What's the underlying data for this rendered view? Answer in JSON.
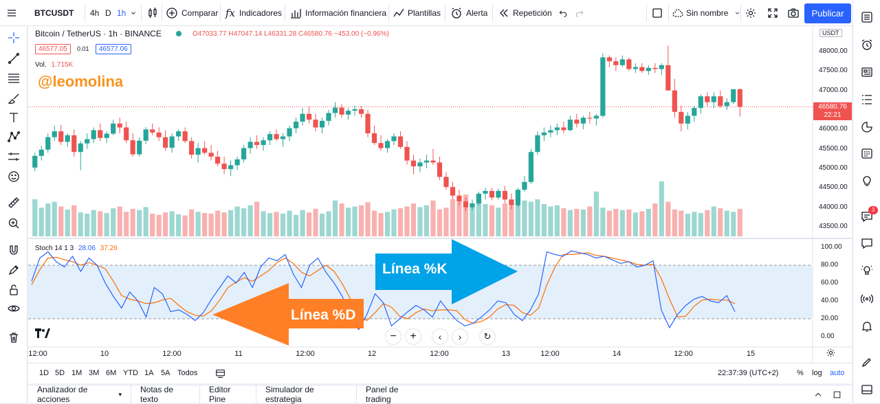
{
  "topbar": {
    "symbol": "BTCUSDT",
    "intervals": [
      "4h",
      "D",
      "1h"
    ],
    "compare": "Comparar",
    "indicators": "Indicadores",
    "financial_info": "Información financiera",
    "templates": "Plantillas",
    "alert": "Alerta",
    "replay": "Repetición",
    "layout_name": "Sin nombre",
    "publish": "Publicar"
  },
  "legend": {
    "title": "Bitcoin / TetherUS · 1h · BINANCE",
    "ohlc": "O47033.77 H47047.14 L46331.28 C46580.76 −453.00 (−0.96%)",
    "bid": "46577.05",
    "spread": "0.01",
    "ask": "46577.06",
    "vol_label": "Vol.",
    "vol_value": "1.715K",
    "watermark": "@leomolina",
    "stoch_label": "Stoch 14 1 3",
    "stoch_k": "28.06",
    "stoch_d": "37.26"
  },
  "annotations": {
    "k_label": "Línea %K",
    "d_label": "Línea %D"
  },
  "price_axis": {
    "currency": "USDT",
    "labels": [
      "48000.00",
      "47500.00",
      "47000.00",
      "46500.00",
      "46000.00",
      "45500.00",
      "45000.00",
      "44500.00",
      "44000.00",
      "43500.00"
    ],
    "last_price": "46580.76",
    "countdown": "22:21",
    "stoch_labels": [
      "100.00",
      "80.00",
      "60.00",
      "40.00",
      "20.00",
      "0.00"
    ]
  },
  "time_axis": [
    "12:00",
    "10",
    "12:00",
    "11",
    "12:00",
    "12",
    "12:00",
    "13",
    "12:00",
    "14",
    "12:00",
    "15"
  ],
  "bottombar": {
    "ranges": [
      "1D",
      "5D",
      "1M",
      "3M",
      "6M",
      "YTD",
      "1A",
      "5A",
      "Todos"
    ],
    "clock": "22:37:39 (UTC+2)",
    "percent": "%",
    "log": "log",
    "auto": "auto"
  },
  "tabs": [
    "Analizador de acciones",
    "Notas de texto",
    "Editor Pine",
    "Simulador de estrategia",
    "Panel de trading"
  ],
  "badge_count": "3",
  "colors": {
    "up": "#26a69a",
    "down": "#ef5350",
    "k_line": "#2962ff",
    "d_line": "#ff6d00",
    "stoch_band": "#e3f0fb",
    "annotation_k": "#00a2e8",
    "annotation_d": "#ff7f27",
    "watermark": "#f7931e"
  },
  "chart_data": {
    "type": "candlestick",
    "symbol": "Bitcoin / TetherUS",
    "interval": "1h",
    "ylim": [
      43300,
      48300
    ],
    "candles": [
      [
        45020,
        45400,
        44930,
        45320
      ],
      [
        45320,
        45580,
        45200,
        45480
      ],
      [
        45480,
        45900,
        45400,
        45800
      ],
      [
        45800,
        46100,
        45700,
        45950
      ],
      [
        45950,
        46120,
        45600,
        45680
      ],
      [
        45680,
        45900,
        45550,
        45850
      ],
      [
        45850,
        46000,
        45300,
        45420
      ],
      [
        45420,
        45700,
        44950,
        45640
      ],
      [
        45640,
        45900,
        45500,
        45750
      ],
      [
        45750,
        46050,
        45650,
        45980
      ],
      [
        45980,
        46150,
        45700,
        45780
      ],
      [
        45780,
        45950,
        45650,
        45890
      ],
      [
        45890,
        46250,
        45850,
        46150
      ],
      [
        46150,
        46300,
        45900,
        46050
      ],
      [
        46050,
        46200,
        45650,
        45720
      ],
      [
        45720,
        45900,
        45300,
        45360
      ],
      [
        45360,
        45800,
        45300,
        45710
      ],
      [
        45710,
        46060,
        45620,
        46000
      ],
      [
        46000,
        46150,
        45850,
        45920
      ],
      [
        45920,
        46050,
        45700,
        45800
      ],
      [
        45800,
        45980,
        45450,
        45530
      ],
      [
        45530,
        45900,
        45400,
        45820
      ],
      [
        45820,
        46000,
        45700,
        45950
      ],
      [
        45950,
        46050,
        45650,
        45700
      ],
      [
        45700,
        45800,
        45250,
        45350
      ],
      [
        45350,
        45650,
        45150,
        45520
      ],
      [
        45520,
        45700,
        45350,
        45400
      ],
      [
        45400,
        45600,
        45200,
        45300
      ],
      [
        45300,
        45450,
        45050,
        45120
      ],
      [
        45120,
        45300,
        44850,
        44980
      ],
      [
        44980,
        45200,
        44800,
        45080
      ],
      [
        45080,
        45300,
        44960,
        45230
      ],
      [
        45230,
        45600,
        45150,
        45520
      ],
      [
        45520,
        45800,
        45380,
        45680
      ],
      [
        45680,
        45850,
        45500,
        45600
      ],
      [
        45600,
        45800,
        45450,
        45720
      ],
      [
        45720,
        45950,
        45600,
        45880
      ],
      [
        45880,
        46000,
        45700,
        45750
      ],
      [
        45750,
        45900,
        45550,
        45820
      ],
      [
        45820,
        46100,
        45700,
        46030
      ],
      [
        46030,
        46300,
        45900,
        46200
      ],
      [
        46200,
        46550,
        46100,
        46400
      ],
      [
        46400,
        46600,
        46150,
        46250
      ],
      [
        46250,
        46400,
        45950,
        46050
      ],
      [
        46050,
        46300,
        45900,
        46220
      ],
      [
        46220,
        46500,
        46100,
        46420
      ],
      [
        46420,
        46700,
        46300,
        46560
      ],
      [
        46560,
        46650,
        46300,
        46380
      ],
      [
        46380,
        46550,
        46250,
        46480
      ],
      [
        46480,
        46620,
        46350,
        46520
      ],
      [
        46520,
        46600,
        46300,
        46400
      ],
      [
        46400,
        46500,
        45800,
        45900
      ],
      [
        45900,
        46100,
        45600,
        45650
      ],
      [
        45650,
        45850,
        45450,
        45520
      ],
      [
        45520,
        45750,
        45400,
        45700
      ],
      [
        45700,
        45900,
        45600,
        45820
      ],
      [
        45820,
        45950,
        45500,
        45550
      ],
      [
        45550,
        45700,
        45100,
        45200
      ],
      [
        45200,
        45350,
        44850,
        45050
      ],
      [
        45050,
        45250,
        44900,
        45150
      ],
      [
        45150,
        45350,
        45000,
        45200
      ],
      [
        45200,
        45500,
        45080,
        45150
      ],
      [
        45150,
        45300,
        44700,
        44780
      ],
      [
        44780,
        44900,
        44450,
        44520
      ],
      [
        44520,
        44650,
        44200,
        44300
      ],
      [
        44300,
        44450,
        44050,
        44150
      ],
      [
        44150,
        44250,
        43900,
        44000
      ],
      [
        44000,
        44200,
        43920,
        44100
      ],
      [
        44100,
        44400,
        44050,
        44350
      ],
      [
        44350,
        44500,
        44200,
        44420
      ],
      [
        44420,
        44500,
        44180,
        44250
      ],
      [
        44250,
        44480,
        44200,
        44420
      ],
      [
        44420,
        44550,
        44100,
        44200
      ],
      [
        44200,
        44350,
        43950,
        44050
      ],
      [
        44050,
        44500,
        44000,
        44450
      ],
      [
        44450,
        44800,
        44400,
        44650
      ],
      [
        44650,
        45500,
        44600,
        45420
      ],
      [
        45420,
        45950,
        45350,
        45850
      ],
      [
        45850,
        46050,
        45700,
        45920
      ],
      [
        45920,
        46100,
        45800,
        45980
      ],
      [
        45980,
        46150,
        45850,
        46050
      ],
      [
        46050,
        46200,
        45900,
        45980
      ],
      [
        45980,
        46350,
        45950,
        46250
      ],
      [
        46250,
        46400,
        46050,
        46150
      ],
      [
        46150,
        46350,
        46000,
        46300
      ],
      [
        46300,
        46450,
        46150,
        46280
      ],
      [
        46280,
        46400,
        46100,
        46350
      ],
      [
        46350,
        47950,
        46300,
        47850
      ],
      [
        47850,
        47900,
        47600,
        47750
      ],
      [
        47750,
        47850,
        47500,
        47650
      ],
      [
        47650,
        47900,
        47600,
        47800
      ],
      [
        47800,
        47850,
        47500,
        47550
      ],
      [
        47550,
        47700,
        47450,
        47600
      ],
      [
        47600,
        47700,
        47450,
        47500
      ],
      [
        47500,
        47650,
        47400,
        47580
      ],
      [
        47580,
        47700,
        47450,
        47550
      ],
      [
        47550,
        47700,
        47400,
        47650
      ],
      [
        47650,
        48150,
        47000,
        47000
      ],
      [
        47000,
        47300,
        46300,
        46450
      ],
      [
        46450,
        46600,
        45950,
        46150
      ],
      [
        46150,
        46450,
        46000,
        46350
      ],
      [
        46350,
        46600,
        46200,
        46550
      ],
      [
        46550,
        46900,
        46400,
        46850
      ],
      [
        46850,
        46950,
        46600,
        46700
      ],
      [
        46700,
        46950,
        46550,
        46850
      ],
      [
        46850,
        47000,
        46550,
        46600
      ],
      [
        46600,
        46800,
        46500,
        46700
      ],
      [
        46700,
        47000,
        46650,
        47033
      ],
      [
        47033,
        47047,
        46331,
        46580
      ]
    ],
    "volume": [
      62,
      48,
      55,
      58,
      50,
      45,
      52,
      40,
      38,
      44,
      42,
      39,
      47,
      50,
      41,
      46,
      44,
      49,
      38,
      36,
      40,
      42,
      37,
      35,
      45,
      41,
      39,
      38,
      43,
      40,
      44,
      50,
      47,
      52,
      58,
      42,
      39,
      41,
      38,
      43,
      36,
      44,
      40,
      46,
      38,
      42,
      60,
      55,
      48,
      50,
      52,
      57,
      43,
      39,
      41,
      45,
      47,
      50,
      55,
      49,
      52,
      60,
      45,
      48,
      62,
      58,
      70,
      50,
      56,
      54,
      52,
      48,
      55,
      51,
      53,
      60,
      58,
      62,
      54,
      50,
      52,
      47,
      44,
      46,
      45,
      50,
      75,
      48,
      43,
      46,
      44,
      45,
      40,
      42,
      46,
      55,
      92,
      58,
      45,
      43,
      38,
      41,
      39,
      44,
      50,
      47,
      43,
      41,
      46
    ],
    "stochastic": {
      "params": "14 1 3",
      "k_last": 28.06,
      "d_last": 37.26,
      "ylim": [
        0,
        100
      ],
      "bands": [
        20,
        80
      ],
      "k": [
        62,
        88,
        95,
        84,
        78,
        90,
        73,
        88,
        80,
        60,
        45,
        32,
        50,
        40,
        22,
        55,
        48,
        28,
        30,
        25,
        18,
        27,
        42,
        55,
        68,
        60,
        72,
        55,
        78,
        88,
        85,
        92,
        70,
        55,
        80,
        88,
        72,
        60,
        45,
        20,
        8,
        25,
        48,
        38,
        12,
        20,
        28,
        35,
        30,
        22,
        40,
        28,
        18,
        12,
        15,
        22,
        30,
        40,
        38,
        25,
        18,
        30,
        48,
        95,
        92,
        90,
        96,
        94,
        92,
        88,
        90,
        86,
        82,
        84,
        78,
        80,
        85,
        30,
        10,
        25,
        35,
        42,
        45,
        40,
        38,
        46,
        28
      ],
      "d": [
        58,
        75,
        88,
        89,
        86,
        84,
        80,
        83,
        80,
        76,
        62,
        46,
        42,
        40,
        37,
        38,
        41,
        43,
        35,
        28,
        24,
        23,
        29,
        41,
        55,
        61,
        66,
        62,
        68,
        74,
        83,
        88,
        82,
        72,
        68,
        74,
        80,
        73,
        59,
        42,
        24,
        18,
        27,
        37,
        33,
        23,
        20,
        27,
        31,
        29,
        30,
        30,
        29,
        19,
        15,
        17,
        22,
        31,
        36,
        35,
        27,
        24,
        32,
        58,
        78,
        92,
        92,
        93,
        94,
        91,
        90,
        88,
        86,
        84,
        81,
        80,
        81,
        65,
        42,
        22,
        23,
        34,
        41,
        42,
        41,
        41,
        37
      ]
    }
  }
}
